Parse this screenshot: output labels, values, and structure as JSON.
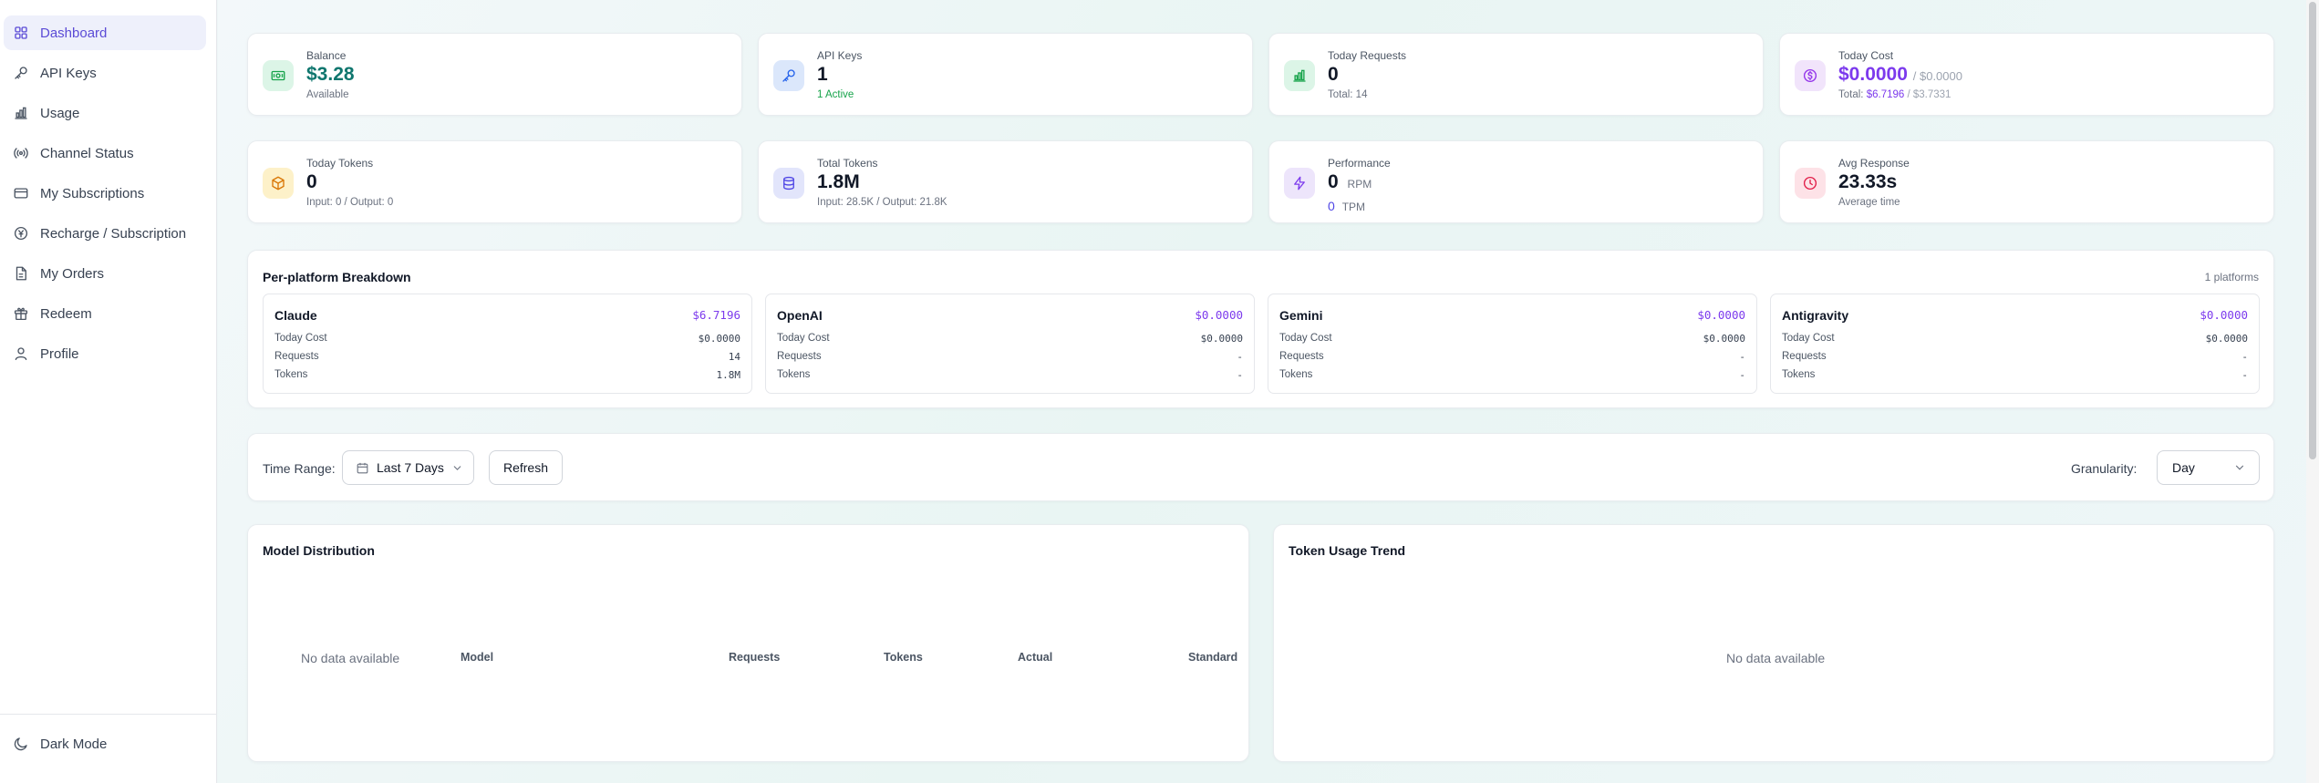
{
  "sidebar": {
    "items": [
      {
        "label": "Dashboard",
        "icon": "grid-icon",
        "active": true
      },
      {
        "label": "API Keys",
        "icon": "key-icon"
      },
      {
        "label": "Usage",
        "icon": "bar-chart-icon"
      },
      {
        "label": "Channel Status",
        "icon": "signal-icon"
      },
      {
        "label": "My Subscriptions",
        "icon": "credit-card-icon"
      },
      {
        "label": "Recharge / Subscription",
        "icon": "currency-icon"
      },
      {
        "label": "My Orders",
        "icon": "document-icon"
      },
      {
        "label": "Redeem",
        "icon": "gift-icon"
      },
      {
        "label": "Profile",
        "icon": "user-icon"
      }
    ],
    "dark_mode_label": "Dark Mode"
  },
  "stats": {
    "balance": {
      "label": "Balance",
      "value": "$3.28",
      "sub": "Available"
    },
    "api_keys": {
      "label": "API Keys",
      "value": "1",
      "sub": "1 Active"
    },
    "today_requests": {
      "label": "Today Requests",
      "value": "0",
      "sub": "Total: 14"
    },
    "today_cost": {
      "label": "Today Cost",
      "value": "$0.0000",
      "value_secondary": "/ $0.0000",
      "sub_prefix": "Total:",
      "sub_actual": "$6.7196",
      "sub_standard": "/ $3.7331"
    },
    "today_tokens": {
      "label": "Today Tokens",
      "value": "0",
      "sub": "Input: 0 / Output: 0"
    },
    "total_tokens": {
      "label": "Total Tokens",
      "value": "1.8M",
      "sub": "Input: 28.5K / Output: 21.8K"
    },
    "performance": {
      "label": "Performance",
      "rpm_value": "0",
      "rpm_unit": "RPM",
      "tpm_value": "0",
      "tpm_unit": "TPM"
    },
    "avg_response": {
      "label": "Avg Response",
      "value": "23.33s",
      "sub": "Average time"
    }
  },
  "platforms": {
    "title": "Per-platform Breakdown",
    "count_label": "1 platforms",
    "row_labels": {
      "cost": "Today Cost",
      "requests": "Requests",
      "tokens": "Tokens"
    },
    "items": [
      {
        "name": "Claude",
        "total": "$6.7196",
        "cost": "$0.0000",
        "requests": "14",
        "tokens": "1.8M"
      },
      {
        "name": "OpenAI",
        "total": "$0.0000",
        "cost": "$0.0000",
        "requests": "-",
        "tokens": "-"
      },
      {
        "name": "Gemini",
        "total": "$0.0000",
        "cost": "$0.0000",
        "requests": "-",
        "tokens": "-"
      },
      {
        "name": "Antigravity",
        "total": "$0.0000",
        "cost": "$0.0000",
        "requests": "-",
        "tokens": "-"
      }
    ]
  },
  "filters": {
    "time_range_label": "Time Range:",
    "time_range_value": "Last 7 Days",
    "refresh_label": "Refresh",
    "granularity_label": "Granularity:",
    "granularity_value": "Day"
  },
  "model_distribution": {
    "title": "Model Distribution",
    "no_data": "No data available",
    "columns": [
      "Model",
      "Requests",
      "Tokens",
      "Actual",
      "Standard"
    ]
  },
  "token_trend": {
    "title": "Token Usage Trend",
    "no_data": "No data available"
  },
  "colors": {
    "accent": "#5b4bd6",
    "active_green": "#16a34a",
    "cost_purple": "#7c3aed"
  }
}
